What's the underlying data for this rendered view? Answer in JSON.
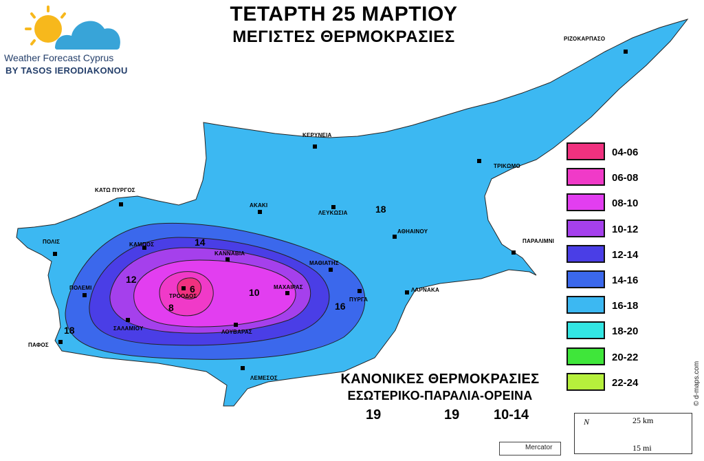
{
  "title_line1": "ΤΕΤΑΡΤΗ 25 ΜΑΡΤΙΟΥ",
  "title_line2": "ΜΕΓΙΣΤΕΣ ΘΕΡΜΟΚΡΑΣΙΕΣ",
  "logo": {
    "line1": "Weather Forecast Cyprus",
    "line2": "BY TASOS IERODIAKONOU"
  },
  "cities": [
    {
      "name": "ΡΙΖΟΚΑΡΠΑΣΟ"
    },
    {
      "name": "ΚΕΡΥΝΕΙΑ"
    },
    {
      "name": "ΤΡΙΚΩΜΟ"
    },
    {
      "name": "ΚΑΤΩ ΠΥΡΓΟΣ"
    },
    {
      "name": "ΑΚΑΚΙ"
    },
    {
      "name": "ΛΕΥΚΩΣΙΑ"
    },
    {
      "name": "ΑΘΗΑΙΝΟΥ"
    },
    {
      "name": "ΠΑΡΑΛΙΜΝΙ"
    },
    {
      "name": "ΠΟΛΙΣ"
    },
    {
      "name": "ΚΑΜΠΟΣ"
    },
    {
      "name": "ΚΑΝΝΑΒΙΑ"
    },
    {
      "name": "ΜΑΘΙΑΤΗΣ"
    },
    {
      "name": "ΠΟΛΕΜΙ"
    },
    {
      "name": "ΤΡΟΟΔΟΣ"
    },
    {
      "name": "ΜΑΧΑΙΡΑΣ"
    },
    {
      "name": "ΠΥΡΓΑ"
    },
    {
      "name": "ΛΑΡΝΑΚΑ"
    },
    {
      "name": "ΣΑΛΑΜΙΟΥ"
    },
    {
      "name": "ΛΟΥΒΑΡΑΣ"
    },
    {
      "name": "ΠΑΦΟΣ"
    },
    {
      "name": "ΛΕΜΕΣΟΣ"
    }
  ],
  "isotherm_labels": [
    "18",
    "14",
    "12",
    "6",
    "8",
    "10",
    "16",
    "18"
  ],
  "legend": [
    {
      "range": "04-06",
      "color": "#f0317f"
    },
    {
      "range": "06-08",
      "color": "#f03ac8"
    },
    {
      "range": "08-10",
      "color": "#e23ef0"
    },
    {
      "range": "10-12",
      "color": "#a540ec"
    },
    {
      "range": "12-14",
      "color": "#4a3ee6"
    },
    {
      "range": "14-16",
      "color": "#3b68ec"
    },
    {
      "range": "16-18",
      "color": "#3cb8f2"
    },
    {
      "range": "18-20",
      "color": "#33e6e3"
    },
    {
      "range": "20-22",
      "color": "#3fe63a"
    },
    {
      "range": "22-24",
      "color": "#b6f03c"
    }
  ],
  "normals": {
    "title": "ΚΑΝΟΝΙΚΕΣ ΘΕΡΜΟΚΡΑΣΙΕΣ",
    "subtitle": "ΕΣΩΤΕΡΙΚΟ-ΠΑΡΑΛΙΑ-ΟΡΕΙΝΑ",
    "interior": "19",
    "coast": "19",
    "mountain": "10-14"
  },
  "scale": {
    "km": "25 km",
    "mi": "15 mi",
    "north": "N"
  },
  "projection": "Mercator",
  "credit": "© d-maps.com",
  "colors": {
    "sea": "#ffffff",
    "land_base": "#3cb8f2",
    "contour_14_16": "#3b68ec",
    "contour_12_14": "#4a3ee6",
    "contour_10_12": "#a540ec",
    "contour_8_10": "#e23ef0",
    "contour_6_8": "#f03ac8",
    "contour_4_6": "#f0317f"
  }
}
